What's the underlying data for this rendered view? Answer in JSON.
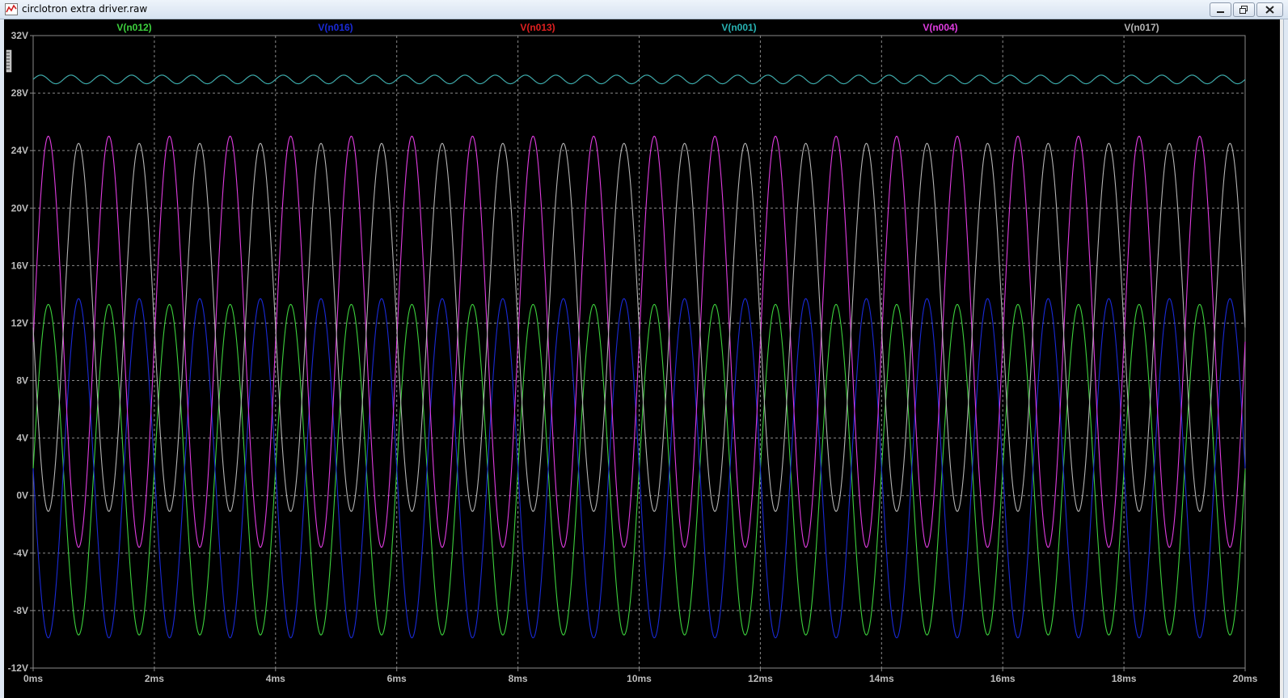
{
  "window": {
    "title": "circlotron extra driver.raw"
  },
  "colors": {
    "background": "#000000",
    "grid": "#8a8a8a",
    "axis_text": "#bdbdbd"
  },
  "chart_data": {
    "type": "line",
    "title": "",
    "xlabel": "",
    "ylabel": "",
    "x_unit": "ms",
    "y_unit": "V",
    "xlim": [
      0,
      20
    ],
    "ylim": [
      -12,
      32
    ],
    "x_ticks": [
      "0ms",
      "2ms",
      "4ms",
      "6ms",
      "8ms",
      "10ms",
      "12ms",
      "14ms",
      "16ms",
      "18ms",
      "20ms"
    ],
    "y_ticks": [
      "32V",
      "28V",
      "24V",
      "20V",
      "16V",
      "12V",
      "8V",
      "4V",
      "0V",
      "-4V",
      "-8V",
      "-12V"
    ],
    "grid": true,
    "legend": "top",
    "series": [
      {
        "name": "V(n012)",
        "color": "#3dd13d",
        "frequency_khz": 1.0,
        "offset": 1.8,
        "amplitude": 11.5,
        "phase_deg": 0,
        "min": -9.7,
        "max": 13.4
      },
      {
        "name": "V(n016)",
        "color": "#1a2ad6",
        "frequency_khz": 1.0,
        "offset": 1.9,
        "amplitude": 11.8,
        "phase_deg": 180,
        "min": -9.9,
        "max": 13.7
      },
      {
        "name": "V(n013)",
        "color": "#e02020",
        "frequency_khz": 2.0,
        "offset": 28.95,
        "amplitude": 0.3,
        "phase_deg": 0,
        "min": 28.6,
        "max": 29.2
      },
      {
        "name": "V(n001)",
        "color": "#28b4b4",
        "frequency_khz": 2.0,
        "offset": 28.95,
        "amplitude": 0.3,
        "phase_deg": 0,
        "min": 28.6,
        "max": 29.2
      },
      {
        "name": "V(n004)",
        "color": "#e03ce0",
        "frequency_khz": 1.0,
        "offset": 10.7,
        "amplitude": 14.3,
        "phase_deg": 0,
        "min": -3.6,
        "max": 25.0
      },
      {
        "name": "V(n017)",
        "color": "#b4b4b4",
        "frequency_khz": 1.0,
        "offset": 11.7,
        "amplitude": 12.8,
        "phase_deg": 180,
        "min": -1.1,
        "max": 24.5
      }
    ]
  }
}
